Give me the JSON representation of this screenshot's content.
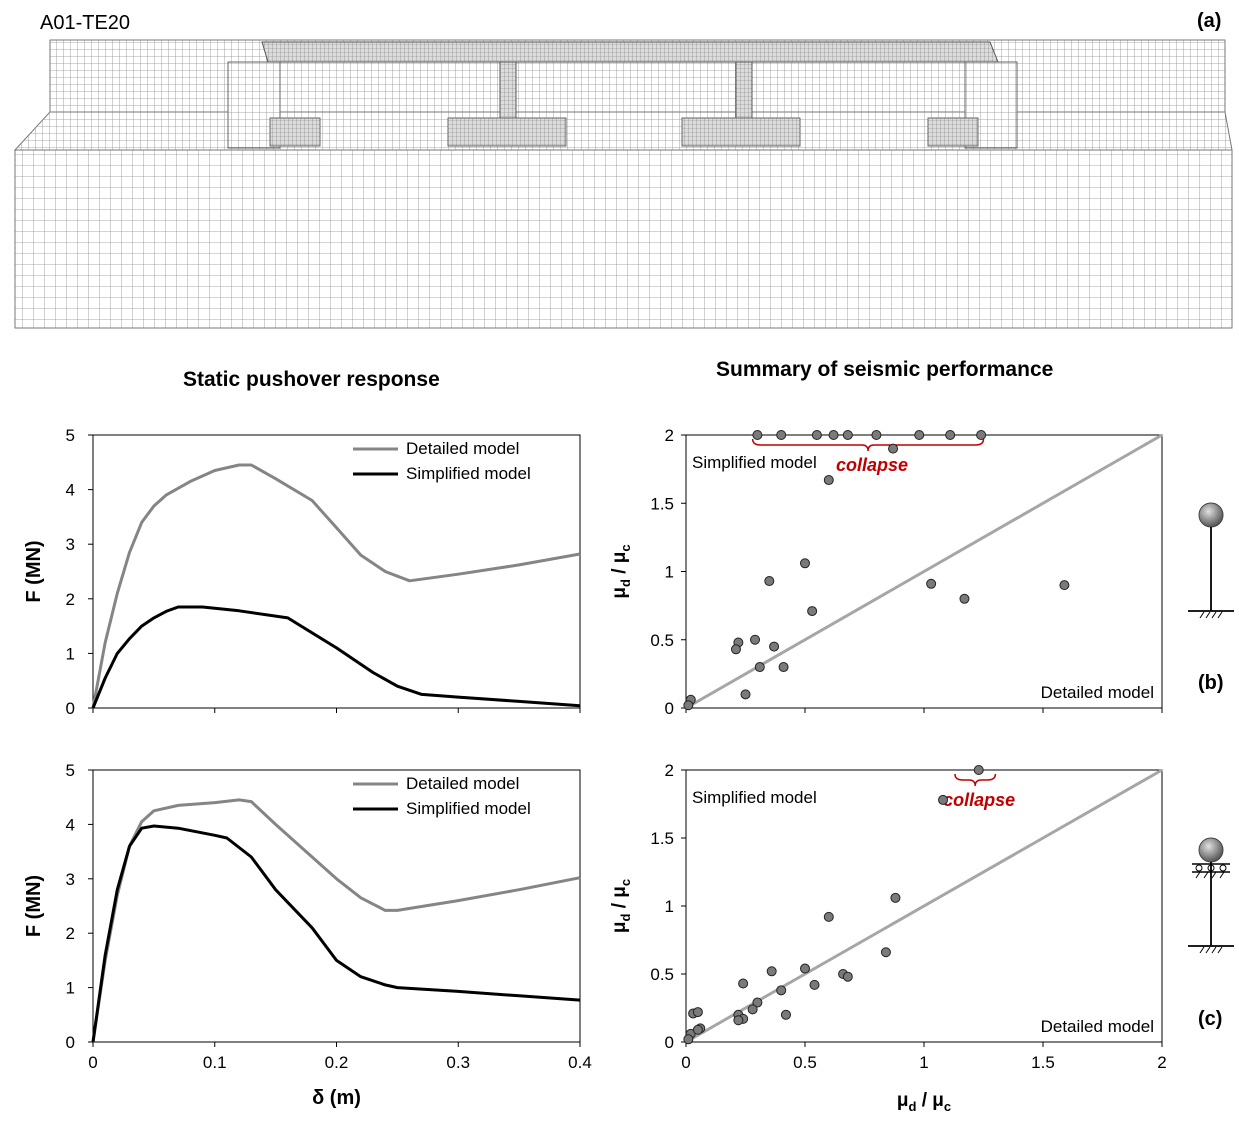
{
  "header": {
    "model_label": "A01-TE20",
    "panel_a": "(a)",
    "panel_b": "(b)",
    "panel_c": "(c)",
    "left_title": "Static pushover response",
    "right_title": "Summary of seismic performance"
  },
  "colors": {
    "detailed": "#858585",
    "simplified": "#000000",
    "marker_fill": "#7a7a7a",
    "diagonal": "#a6a6a6",
    "collapse": "#c00000",
    "mesh_line": "#8c8c8c"
  },
  "chart_data": [
    {
      "id": "pushover-b",
      "type": "line",
      "xlabel": "",
      "ylabel": "F  (MN)",
      "xlim": [
        0,
        0.4
      ],
      "ylim": [
        0,
        5
      ],
      "yticks": [
        "0",
        "1",
        "2",
        "3",
        "4",
        "5"
      ],
      "xticks": [],
      "legend": "top-right",
      "series": [
        {
          "name": "Detailed model",
          "x": [
            0,
            0.01,
            0.02,
            0.03,
            0.04,
            0.05,
            0.06,
            0.08,
            0.1,
            0.12,
            0.13,
            0.15,
            0.18,
            0.2,
            0.22,
            0.24,
            0.26,
            0.3,
            0.35,
            0.4
          ],
          "y": [
            0,
            1.2,
            2.1,
            2.85,
            3.4,
            3.7,
            3.9,
            4.15,
            4.35,
            4.45,
            4.45,
            4.2,
            3.8,
            3.3,
            2.8,
            2.5,
            2.33,
            2.45,
            2.62,
            2.82
          ]
        },
        {
          "name": "Simplified model",
          "x": [
            0,
            0.01,
            0.02,
            0.03,
            0.04,
            0.05,
            0.06,
            0.07,
            0.09,
            0.12,
            0.16,
            0.2,
            0.23,
            0.25,
            0.27,
            0.3,
            0.35,
            0.4
          ],
          "y": [
            0,
            0.55,
            1.0,
            1.27,
            1.5,
            1.65,
            1.77,
            1.85,
            1.85,
            1.78,
            1.65,
            1.1,
            0.65,
            0.4,
            0.25,
            0.2,
            0.12,
            0.04
          ]
        }
      ]
    },
    {
      "id": "performance-b",
      "type": "scatter",
      "xlabel": "",
      "ylabel": "μd / μc",
      "xlim": [
        0,
        2
      ],
      "ylim": [
        0,
        2
      ],
      "yticks": [
        "0",
        "0.5",
        "1",
        "1.5",
        "2"
      ],
      "xticks": [],
      "diagonal": [
        [
          0,
          0
        ],
        [
          2,
          2
        ]
      ],
      "annotations": {
        "upper_left": "Simplified model",
        "lower_right": "Detailed model",
        "collapse": "collapse"
      },
      "collapse_range": [
        0.28,
        1.25
      ],
      "points": [
        [
          0.3,
          2.0
        ],
        [
          0.4,
          2.0
        ],
        [
          0.55,
          2.0
        ],
        [
          0.62,
          2.0
        ],
        [
          0.68,
          2.0
        ],
        [
          0.8,
          2.0
        ],
        [
          0.98,
          2.0
        ],
        [
          1.11,
          2.0
        ],
        [
          1.24,
          2.0
        ],
        [
          0.87,
          1.9
        ],
        [
          0.6,
          1.67
        ],
        [
          0.5,
          1.06
        ],
        [
          0.35,
          0.93
        ],
        [
          0.53,
          0.71
        ],
        [
          0.22,
          0.48
        ],
        [
          0.29,
          0.5
        ],
        [
          0.21,
          0.43
        ],
        [
          0.37,
          0.45
        ],
        [
          0.31,
          0.3
        ],
        [
          0.41,
          0.3
        ],
        [
          0.25,
          0.1
        ],
        [
          0.02,
          0.06
        ],
        [
          0.01,
          0.02
        ],
        [
          1.03,
          0.91
        ],
        [
          1.17,
          0.8
        ],
        [
          1.59,
          0.9
        ]
      ]
    },
    {
      "id": "pushover-c",
      "type": "line",
      "xlabel": "δ (m)",
      "ylabel": "F  (MN)",
      "xlim": [
        0,
        0.4
      ],
      "ylim": [
        0,
        5
      ],
      "yticks": [
        "0",
        "1",
        "2",
        "3",
        "4",
        "5"
      ],
      "xticks": [
        "0",
        "0.1",
        "0.2",
        "0.3",
        "0.4"
      ],
      "legend": "top-right",
      "series": [
        {
          "name": "Detailed model",
          "x": [
            0,
            0.01,
            0.02,
            0.03,
            0.04,
            0.05,
            0.07,
            0.1,
            0.12,
            0.13,
            0.15,
            0.18,
            0.2,
            0.22,
            0.24,
            0.25,
            0.3,
            0.35,
            0.4
          ],
          "y": [
            0,
            1.5,
            2.7,
            3.6,
            4.05,
            4.25,
            4.35,
            4.4,
            4.45,
            4.42,
            4.0,
            3.4,
            3.0,
            2.65,
            2.42,
            2.42,
            2.6,
            2.8,
            3.02
          ]
        },
        {
          "name": "Simplified model",
          "x": [
            0,
            0.01,
            0.02,
            0.03,
            0.04,
            0.05,
            0.07,
            0.1,
            0.11,
            0.13,
            0.15,
            0.18,
            0.2,
            0.22,
            0.24,
            0.25,
            0.3,
            0.35,
            0.4
          ],
          "y": [
            0,
            1.6,
            2.8,
            3.6,
            3.93,
            3.97,
            3.93,
            3.8,
            3.75,
            3.4,
            2.8,
            2.1,
            1.5,
            1.2,
            1.05,
            1.0,
            0.93,
            0.85,
            0.77
          ]
        }
      ]
    },
    {
      "id": "performance-c",
      "type": "scatter",
      "xlabel": "μd / μc",
      "ylabel": "μd / μc",
      "xlim": [
        0,
        2
      ],
      "ylim": [
        0,
        2
      ],
      "yticks": [
        "0",
        "0.5",
        "1",
        "1.5",
        "2"
      ],
      "xticks": [
        "0",
        "0.5",
        "1",
        "1.5",
        "2"
      ],
      "diagonal": [
        [
          0,
          0
        ],
        [
          2,
          2
        ]
      ],
      "annotations": {
        "upper_left": "Simplified model",
        "lower_right": "Detailed model",
        "collapse": "collapse"
      },
      "collapse_range": [
        1.13,
        1.3
      ],
      "points": [
        [
          1.23,
          2.0
        ],
        [
          1.08,
          1.78
        ],
        [
          0.88,
          1.06
        ],
        [
          0.6,
          0.92
        ],
        [
          0.84,
          0.66
        ],
        [
          0.66,
          0.5
        ],
        [
          0.68,
          0.48
        ],
        [
          0.5,
          0.54
        ],
        [
          0.36,
          0.52
        ],
        [
          0.54,
          0.42
        ],
        [
          0.24,
          0.43
        ],
        [
          0.4,
          0.38
        ],
        [
          0.3,
          0.29
        ],
        [
          0.28,
          0.24
        ],
        [
          0.22,
          0.2
        ],
        [
          0.24,
          0.17
        ],
        [
          0.22,
          0.16
        ],
        [
          0.42,
          0.2
        ],
        [
          0.02,
          0.06
        ],
        [
          0.03,
          0.21
        ],
        [
          0.05,
          0.22
        ],
        [
          0.06,
          0.1
        ],
        [
          0.05,
          0.09
        ],
        [
          0.01,
          0.02
        ]
      ]
    }
  ],
  "axis_labels": {
    "x_left": "δ (m)",
    "x_right": "μd / μc",
    "y_left_b": "F  (MN)",
    "y_left_c": "F  (MN)",
    "y_right_b": "μd / μc",
    "y_right_c": "μd / μc"
  }
}
